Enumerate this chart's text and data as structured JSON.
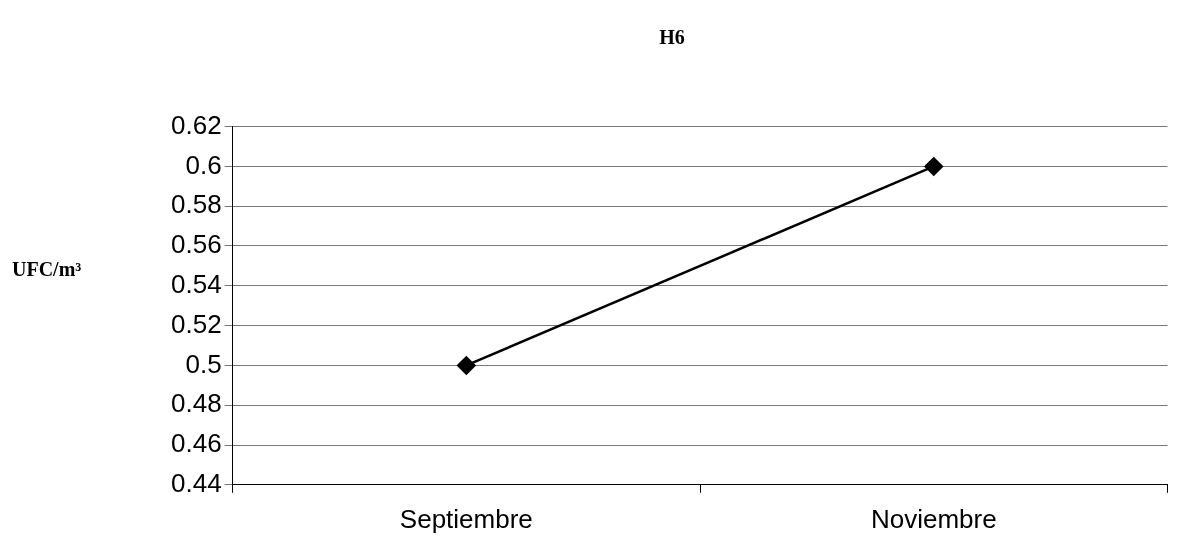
{
  "chart_data": {
    "type": "line",
    "title": "H6",
    "ylabel": "UFC/m³",
    "categories": [
      "Septiembre",
      "Noviembre"
    ],
    "series": [
      {
        "color": "#000000",
        "values": [
          0.5,
          0.6
        ]
      }
    ],
    "ylim": [
      0.44,
      0.62
    ],
    "yticks": [
      0.44,
      0.46,
      0.48,
      0.5,
      0.52,
      0.54,
      0.56,
      0.58,
      0.6,
      0.62
    ],
    "grid": "y",
    "legend": false,
    "marker": "diamond",
    "line_style": "solid"
  }
}
